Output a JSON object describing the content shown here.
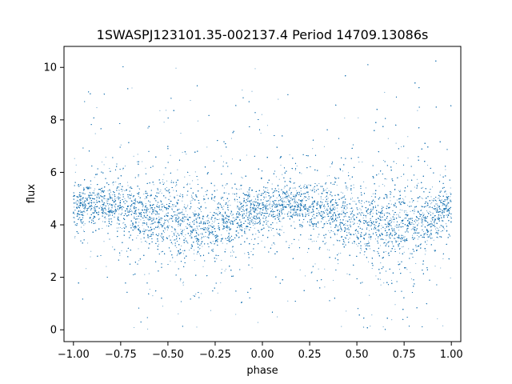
{
  "chart_data": {
    "type": "scatter",
    "title": "1SWASPJ123101.35-002137.4 Period 14709.13086s",
    "xlabel": "phase",
    "ylabel": "flux",
    "xlim": [
      -1.05,
      1.05
    ],
    "ylim": [
      -0.45,
      10.8
    ],
    "xticks": [
      -1.0,
      -0.75,
      -0.5,
      -0.25,
      0.0,
      0.25,
      0.5,
      0.75,
      1.0
    ],
    "xtick_labels": [
      "−1.00",
      "−0.75",
      "−0.50",
      "−0.25",
      "0.00",
      "0.25",
      "0.50",
      "0.75",
      "1.00"
    ],
    "yticks": [
      0,
      2,
      4,
      6,
      8,
      10
    ],
    "ytick_labels": [
      "0",
      "2",
      "4",
      "6",
      "8",
      "10"
    ],
    "grid": false,
    "point_color": "#1f77b4",
    "series": [
      {
        "phase_range": [
          -1.0,
          1.0
        ],
        "flux_envelope": {
          "phase": [
            -1.0,
            -0.875,
            -0.75,
            -0.625,
            -0.5,
            -0.375,
            -0.25,
            -0.125,
            0.0,
            0.125,
            0.25,
            0.375,
            0.5,
            0.625,
            0.75,
            0.875,
            1.0
          ],
          "flux_center": [
            4.8,
            4.8,
            4.7,
            4.4,
            4.2,
            4.0,
            4.0,
            4.3,
            4.6,
            4.8,
            4.7,
            4.4,
            4.1,
            4.0,
            3.9,
            4.3,
            4.7
          ],
          "flux_core_spread": [
            0.35,
            0.35,
            0.4,
            0.5,
            0.6,
            0.6,
            0.55,
            0.45,
            0.35,
            0.35,
            0.4,
            0.5,
            0.6,
            0.6,
            0.55,
            0.45,
            0.35
          ]
        },
        "flux_min": 0.0,
        "flux_max": 10.3
      }
    ]
  }
}
